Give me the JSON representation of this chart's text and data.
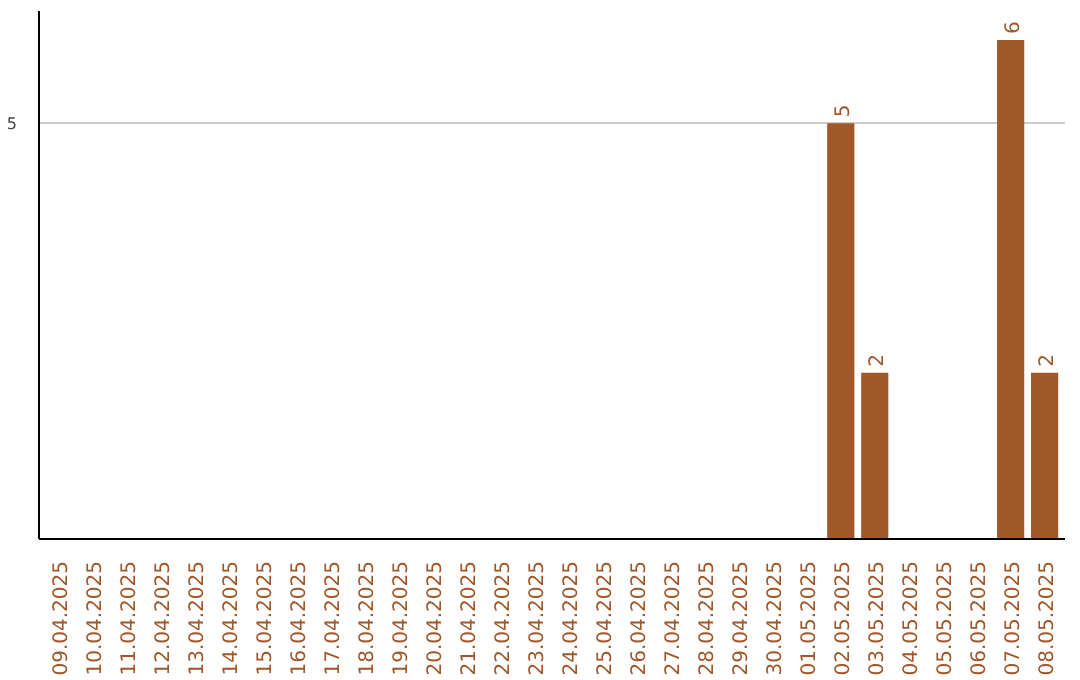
{
  "chart_data": {
    "type": "bar",
    "categories": [
      "09.04.2025",
      "10.04.2025",
      "11.04.2025",
      "12.04.2025",
      "13.04.2025",
      "14.04.2025",
      "15.04.2025",
      "16.04.2025",
      "17.04.2025",
      "18.04.2025",
      "19.04.2025",
      "20.04.2025",
      "21.04.2025",
      "22.04.2025",
      "23.04.2025",
      "24.04.2025",
      "25.04.2025",
      "26.04.2025",
      "27.04.2025",
      "28.04.2025",
      "29.04.2025",
      "30.04.2025",
      "01.05.2025",
      "02.05.2025",
      "03.05.2025",
      "04.05.2025",
      "05.05.2025",
      "06.05.2025",
      "07.05.2025",
      "08.05.2025"
    ],
    "values": [
      null,
      null,
      null,
      null,
      null,
      null,
      null,
      null,
      null,
      null,
      null,
      null,
      null,
      null,
      null,
      null,
      null,
      null,
      null,
      null,
      null,
      null,
      null,
      5,
      2,
      null,
      null,
      null,
      6,
      2
    ],
    "value_labels": [
      null,
      null,
      null,
      null,
      null,
      null,
      null,
      null,
      null,
      null,
      null,
      null,
      null,
      null,
      null,
      null,
      null,
      null,
      null,
      null,
      null,
      null,
      null,
      "5",
      "2",
      null,
      null,
      null,
      "6",
      "2"
    ],
    "color": "#a0572a",
    "ylim": [
      0,
      6.35
    ],
    "yticks": [
      5
    ],
    "grid": "y"
  }
}
